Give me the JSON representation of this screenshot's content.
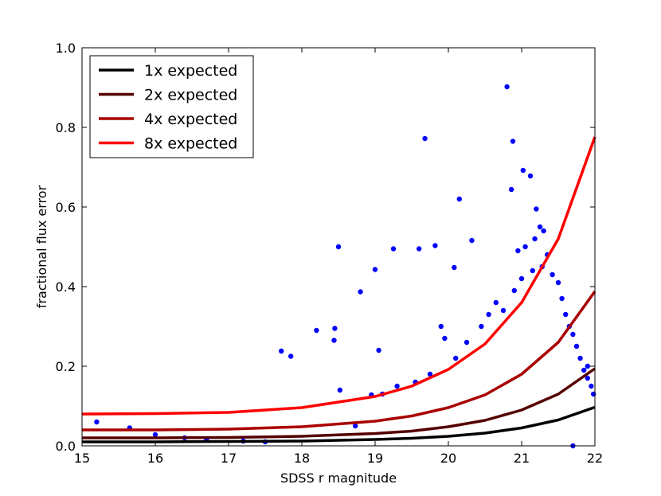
{
  "chart_data": {
    "type": "scatter",
    "title": "",
    "xlabel": "SDSS r magnitude",
    "ylabel": "fractional flux error",
    "xlim": [
      15,
      22
    ],
    "ylim": [
      0.0,
      1.0
    ],
    "xticks": [
      "15",
      "16",
      "17",
      "18",
      "19",
      "20",
      "21",
      "22"
    ],
    "yticks": [
      "0.0",
      "0.2",
      "0.4",
      "0.6",
      "0.8",
      "1.0"
    ],
    "grid": false,
    "legend_position": "top-left",
    "scatter": {
      "color": "#0000ff",
      "points": [
        [
          15.2,
          0.06
        ],
        [
          15.65,
          0.045
        ],
        [
          16.0,
          0.028
        ],
        [
          16.4,
          0.02
        ],
        [
          16.7,
          0.015
        ],
        [
          17.2,
          0.012
        ],
        [
          17.5,
          0.01
        ],
        [
          17.72,
          0.238
        ],
        [
          17.85,
          0.225
        ],
        [
          18.2,
          0.29
        ],
        [
          18.45,
          0.295
        ],
        [
          18.44,
          0.265
        ],
        [
          18.5,
          0.5
        ],
        [
          18.52,
          0.14
        ],
        [
          18.73,
          0.05
        ],
        [
          18.8,
          0.387
        ],
        [
          19.0,
          0.443
        ],
        [
          19.05,
          0.24
        ],
        [
          18.95,
          0.128
        ],
        [
          19.25,
          0.495
        ],
        [
          19.6,
          0.495
        ],
        [
          19.68,
          0.772
        ],
        [
          19.82,
          0.503
        ],
        [
          20.08,
          0.448
        ],
        [
          20.15,
          0.62
        ],
        [
          20.32,
          0.516
        ],
        [
          20.8,
          0.902
        ],
        [
          20.88,
          0.765
        ],
        [
          20.86,
          0.644
        ],
        [
          21.02,
          0.692
        ],
        [
          21.12,
          0.678
        ],
        [
          21.2,
          0.595
        ],
        [
          21.25,
          0.55
        ],
        [
          21.18,
          0.52
        ],
        [
          21.05,
          0.5
        ],
        [
          20.95,
          0.49
        ],
        [
          21.3,
          0.54
        ],
        [
          19.9,
          0.3
        ],
        [
          19.95,
          0.27
        ],
        [
          20.25,
          0.26
        ],
        [
          20.1,
          0.22
        ],
        [
          19.75,
          0.18
        ],
        [
          19.55,
          0.16
        ],
        [
          19.3,
          0.15
        ],
        [
          19.1,
          0.13
        ],
        [
          20.45,
          0.3
        ],
        [
          20.55,
          0.33
        ],
        [
          20.65,
          0.36
        ],
        [
          20.75,
          0.34
        ],
        [
          20.9,
          0.39
        ],
        [
          21.0,
          0.42
        ],
        [
          21.15,
          0.44
        ],
        [
          21.28,
          0.45
        ],
        [
          21.35,
          0.48
        ],
        [
          21.42,
          0.43
        ],
        [
          21.5,
          0.41
        ],
        [
          21.55,
          0.37
        ],
        [
          21.6,
          0.33
        ],
        [
          21.65,
          0.3
        ],
        [
          21.7,
          0.28
        ],
        [
          21.75,
          0.25
        ],
        [
          21.8,
          0.22
        ],
        [
          21.85,
          0.19
        ],
        [
          21.9,
          0.17
        ],
        [
          21.95,
          0.15
        ],
        [
          21.98,
          0.13
        ],
        [
          21.9,
          0.2
        ],
        [
          21.7,
          0.0
        ]
      ]
    },
    "series": [
      {
        "name": "1x expected",
        "color": "#000000",
        "x": [
          15,
          16,
          17,
          18,
          19,
          19.5,
          20,
          20.5,
          21,
          21.5,
          22
        ],
        "y": [
          0.01,
          0.01,
          0.011,
          0.012,
          0.016,
          0.019,
          0.024,
          0.032,
          0.045,
          0.065,
          0.097
        ]
      },
      {
        "name": "2x expected",
        "color": "#550000",
        "x": [
          15,
          16,
          17,
          18,
          19,
          19.5,
          20,
          20.5,
          21,
          21.5,
          22
        ],
        "y": [
          0.02,
          0.02,
          0.021,
          0.024,
          0.031,
          0.037,
          0.048,
          0.064,
          0.09,
          0.13,
          0.194
        ]
      },
      {
        "name": "4x expected",
        "color": "#aa0000",
        "x": [
          15,
          16,
          17,
          18,
          19,
          19.5,
          20,
          20.5,
          21,
          21.5,
          22
        ],
        "y": [
          0.04,
          0.04,
          0.042,
          0.048,
          0.062,
          0.075,
          0.096,
          0.128,
          0.18,
          0.26,
          0.388
        ]
      },
      {
        "name": "8x expected",
        "color": "#ff0000",
        "x": [
          15,
          16,
          17,
          18,
          19,
          19.5,
          20,
          20.5,
          21,
          21.5,
          22
        ],
        "y": [
          0.08,
          0.081,
          0.084,
          0.096,
          0.124,
          0.15,
          0.192,
          0.256,
          0.36,
          0.52,
          0.776
        ]
      }
    ]
  }
}
